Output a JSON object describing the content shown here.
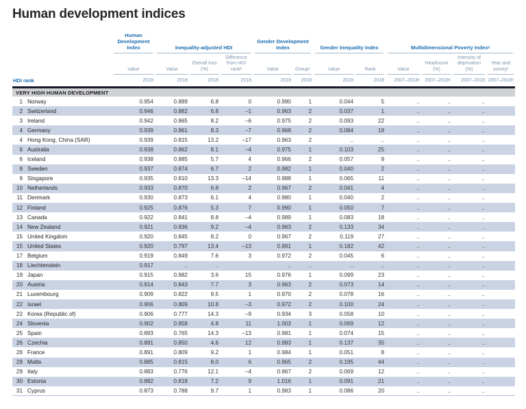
{
  "title": "Human development indices",
  "table": {
    "hdi_rank_label": "HDI rank",
    "section": "VERY HIGH HUMAN DEVELOPMENT",
    "groups": [
      "Human Development Index",
      "Inequality-adjusted HDI",
      "Gender Development Index",
      "Gender Inequality Index",
      "Multidimensional Poverty Indexᵃ"
    ],
    "columns": [
      {
        "label": "Value",
        "year": "2018"
      },
      {
        "label": "Value",
        "year": "2018"
      },
      {
        "label": "Overall loss (%)",
        "year": "2018"
      },
      {
        "label": "Difference from HDI rankᵇ",
        "year": "2018"
      },
      {
        "label": "Value",
        "year": "2018"
      },
      {
        "label": "Groupᶜ",
        "year": "2018"
      },
      {
        "label": "Value",
        "year": "2018"
      },
      {
        "label": "Rank",
        "year": "2018"
      },
      {
        "label": "Value",
        "year": "2007–2018ᵉ"
      },
      {
        "label": "Headcount (%)",
        "year": "2007–2018ᵉ"
      },
      {
        "label": "Intensity of deprivation (%)",
        "year": "2007–2018"
      },
      {
        "label": "Year and surveyᶠ",
        "year": "2007–2018ᵉ"
      }
    ],
    "rows": [
      {
        "rank": "1",
        "country": "Norway",
        "values": [
          "0.954",
          "0.889",
          "6.8",
          "0",
          "0.990",
          "1",
          "0.044",
          "5",
          "..",
          "..",
          "..",
          ""
        ]
      },
      {
        "rank": "2",
        "country": "Switzerland",
        "values": [
          "0.946",
          "0.882",
          "6.8",
          "–1",
          "0.963",
          "2",
          "0.037",
          "1",
          "..",
          "..",
          "..",
          ""
        ]
      },
      {
        "rank": "3",
        "country": "Ireland",
        "values": [
          "0.942",
          "0.865",
          "8.2",
          "–6",
          "0.975",
          "2",
          "0.093",
          "22",
          "..",
          "..",
          "..",
          ""
        ]
      },
      {
        "rank": "4",
        "country": "Germany",
        "values": [
          "0.939",
          "0.861",
          "8.3",
          "–7",
          "0.968",
          "2",
          "0.084",
          "19",
          "..",
          "..",
          "..",
          ""
        ]
      },
      {
        "rank": "4",
        "country": "Hong Kong, China (SAR)",
        "values": [
          "0.939",
          "0.815",
          "13.2",
          "–17",
          "0.963",
          "2",
          "..",
          "..",
          "..",
          "..",
          "..",
          ""
        ]
      },
      {
        "rank": "6",
        "country": "Australia",
        "values": [
          "0.938",
          "0.862",
          "8.1",
          "–4",
          "0.975",
          "1",
          "0.103",
          "25",
          "..",
          "..",
          "..",
          ""
        ]
      },
      {
        "rank": "6",
        "country": "Iceland",
        "values": [
          "0.938",
          "0.885",
          "5.7",
          "4",
          "0.966",
          "2",
          "0.057",
          "9",
          "..",
          "..",
          "..",
          ""
        ]
      },
      {
        "rank": "8",
        "country": "Sweden",
        "values": [
          "0.937",
          "0.874",
          "6.7",
          "2",
          "0.982",
          "1",
          "0.040",
          "2",
          "..",
          "..",
          "..",
          ""
        ]
      },
      {
        "rank": "9",
        "country": "Singapore",
        "values": [
          "0.935",
          "0.810",
          "13.3",
          "–14",
          "0.988",
          "1",
          "0.065",
          "11",
          "..",
          "..",
          "..",
          ""
        ]
      },
      {
        "rank": "10",
        "country": "Netherlands",
        "values": [
          "0.933",
          "0.870",
          "6.8",
          "2",
          "0.967",
          "2",
          "0.041",
          "4",
          "..",
          "..",
          "..",
          ""
        ]
      },
      {
        "rank": "11",
        "country": "Denmark",
        "values": [
          "0.930",
          "0.873",
          "6.1",
          "4",
          "0.980",
          "1",
          "0.040",
          "2",
          "..",
          "..",
          "..",
          ""
        ]
      },
      {
        "rank": "12",
        "country": "Finland",
        "values": [
          "0.925",
          "0.876",
          "5.3",
          "7",
          "0.990",
          "1",
          "0.050",
          "7",
          "..",
          "..",
          "..",
          ""
        ]
      },
      {
        "rank": "13",
        "country": "Canada",
        "values": [
          "0.922",
          "0.841",
          "8.8",
          "–4",
          "0.989",
          "1",
          "0.083",
          "18",
          "..",
          "..",
          "..",
          ""
        ]
      },
      {
        "rank": "14",
        "country": "New Zealand",
        "values": [
          "0.921",
          "0.836",
          "9.2",
          "–4",
          "0.963",
          "2",
          "0.133",
          "34",
          "..",
          "..",
          "..",
          ""
        ]
      },
      {
        "rank": "15",
        "country": "United Kingdom",
        "values": [
          "0.920",
          "0.845",
          "8.2",
          "0",
          "0.967",
          "2",
          "0.119",
          "27",
          "..",
          "..",
          "..",
          ""
        ]
      },
      {
        "rank": "15",
        "country": "United States",
        "values": [
          "0.920",
          "0.797",
          "13.4",
          "–13",
          "0.991",
          "1",
          "0.182",
          "42",
          "..",
          "..",
          "..",
          ""
        ]
      },
      {
        "rank": "17",
        "country": "Belgium",
        "values": [
          "0.919",
          "0.849",
          "7.6",
          "3",
          "0.972",
          "2",
          "0.045",
          "6",
          "..",
          "..",
          "..",
          ""
        ]
      },
      {
        "rank": "18",
        "country": "Liechtenstein",
        "values": [
          "0.917",
          "..",
          "..",
          "",
          "..",
          "..",
          "..",
          "..",
          "..",
          "..",
          "..",
          ""
        ]
      },
      {
        "rank": "19",
        "country": "Japan",
        "values": [
          "0.915",
          "0.882",
          "3.6",
          "15",
          "0.976",
          "1",
          "0.099",
          "23",
          "..",
          "..",
          "..",
          ""
        ]
      },
      {
        "rank": "20",
        "country": "Austria",
        "values": [
          "0.914",
          "0.843",
          "7.7",
          "3",
          "0.963",
          "2",
          "0.073",
          "14",
          "..",
          "..",
          "..",
          ""
        ]
      },
      {
        "rank": "21",
        "country": "Luxembourg",
        "values": [
          "0.909",
          "0.822",
          "9.5",
          "1",
          "0.970",
          "2",
          "0.078",
          "16",
          "..",
          "..",
          "..",
          ""
        ]
      },
      {
        "rank": "22",
        "country": "Israel",
        "values": [
          "0.906",
          "0.809",
          "10.8",
          "–3",
          "0.972",
          "2",
          "0.100",
          "24",
          "..",
          "..",
          "..",
          ""
        ]
      },
      {
        "rank": "22",
        "country": "Korea (Republic of)",
        "values": [
          "0.906",
          "0.777",
          "14.3",
          "–9",
          "0.934",
          "3",
          "0.058",
          "10",
          "..",
          "..",
          "..",
          ""
        ]
      },
      {
        "rank": "24",
        "country": "Slovenia",
        "values": [
          "0.902",
          "0.858",
          "4.8",
          "11",
          "1.003",
          "1",
          "0.069",
          "12",
          "..",
          "..",
          "..",
          ""
        ]
      },
      {
        "rank": "25",
        "country": "Spain",
        "values": [
          "0.893",
          "0.765",
          "14.3",
          "–13",
          "0.981",
          "1",
          "0.074",
          "15",
          "..",
          "..",
          "..",
          ""
        ]
      },
      {
        "rank": "26",
        "country": "Czechia",
        "values": [
          "0.891",
          "0.850",
          "4.6",
          "12",
          "0.983",
          "1",
          "0.137",
          "35",
          "..",
          "..",
          "..",
          ""
        ]
      },
      {
        "rank": "26",
        "country": "France",
        "values": [
          "0.891",
          "0.809",
          "9.2",
          "1",
          "0.984",
          "1",
          "0.051",
          "8",
          "..",
          "..",
          "..",
          ""
        ]
      },
      {
        "rank": "28",
        "country": "Malta",
        "values": [
          "0.885",
          "0.815",
          "8.0",
          "6",
          "0.965",
          "2",
          "0.195",
          "44",
          "..",
          "..",
          "..",
          ""
        ]
      },
      {
        "rank": "29",
        "country": "Italy",
        "values": [
          "0.883",
          "0.776",
          "12.1",
          "–4",
          "0.967",
          "2",
          "0.069",
          "12",
          "..",
          "..",
          "..",
          ""
        ]
      },
      {
        "rank": "30",
        "country": "Estonia",
        "values": [
          "0.882",
          "0.818",
          "7.2",
          "9",
          "1.016",
          "1",
          "0.091",
          "21",
          "..",
          "..",
          "..",
          ""
        ]
      },
      {
        "rank": "31",
        "country": "Cyprus",
        "values": [
          "0.873",
          "0.788",
          "9.7",
          "1",
          "0.983",
          "1",
          "0.086",
          "20",
          "..",
          "..",
          "..",
          ""
        ]
      }
    ]
  }
}
